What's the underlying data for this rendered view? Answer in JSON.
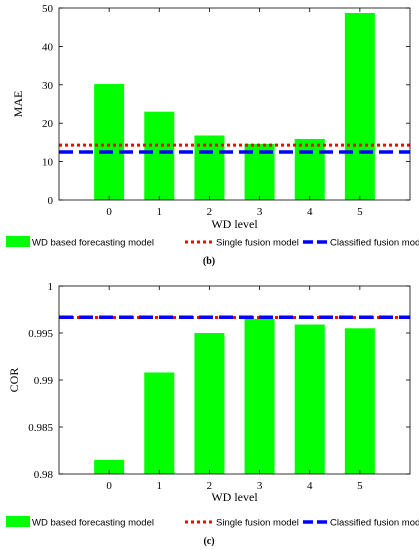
{
  "colors": {
    "bar": "#00ff00",
    "single": "#ff0000",
    "classified": "#0000ff",
    "axis": "#000000"
  },
  "chart_data": [
    {
      "type": "bar",
      "categories": [
        "0",
        "1",
        "2",
        "3",
        "4",
        "5"
      ],
      "values": [
        30.2,
        23.0,
        16.8,
        14.6,
        15.9,
        48.7
      ],
      "ylim": [
        0,
        50
      ],
      "yticks": [
        "0",
        "10",
        "20",
        "30",
        "40",
        "50"
      ],
      "xlabel": "WD level",
      "ylabel": "MAE",
      "caption": "(b)",
      "reference_lines": [
        {
          "name": "Single fusion model",
          "value": 14.3,
          "style": "dotted"
        },
        {
          "name": "Classified fusion models",
          "value": 12.5,
          "style": "dashed"
        }
      ],
      "legend": {
        "bars": "WD based forecasting model",
        "placement": "below"
      }
    },
    {
      "type": "bar",
      "categories": [
        "0",
        "1",
        "2",
        "3",
        "4",
        "5"
      ],
      "values": [
        0.9815,
        0.9908,
        0.995,
        0.9965,
        0.9959,
        0.9955
      ],
      "ylim": [
        0.98,
        1.0
      ],
      "yticks": [
        "0.98",
        "0.985",
        "0.99",
        "0.995",
        "1"
      ],
      "xlabel": "WD level",
      "ylabel": "COR",
      "caption": "(c)",
      "reference_lines": [
        {
          "name": "Single fusion model",
          "value": 0.99665,
          "style": "dotted"
        },
        {
          "name": "Classified fusion models",
          "value": 0.99668,
          "style": "dashed"
        }
      ],
      "legend": {
        "bars": "WD based forecasting model",
        "placement": "below"
      }
    }
  ]
}
